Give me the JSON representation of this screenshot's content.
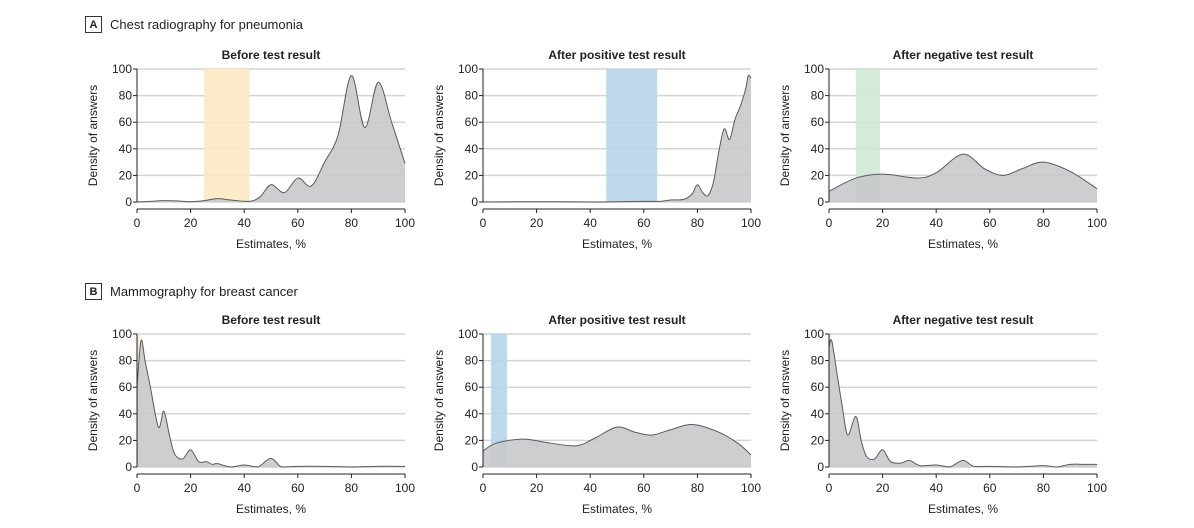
{
  "sections": [
    {
      "label": "A",
      "title": "Chest radiography for pneumonia"
    },
    {
      "label": "B",
      "title": "Mammography for breast cancer"
    }
  ],
  "chart_data": [
    {
      "type": "area",
      "section": "A",
      "title": "Before test result",
      "xlabel": "Estimates, %",
      "ylabel": "Density of answers",
      "xlim": [
        0,
        100
      ],
      "ylim": [
        0,
        100
      ],
      "xticks": [
        0,
        20,
        40,
        60,
        80,
        100
      ],
      "yticks": [
        0,
        20,
        40,
        60,
        80,
        100
      ],
      "grid": true,
      "band": {
        "from": 25,
        "to": 42,
        "color": "#fce8c2"
      },
      "points": [
        [
          0,
          0
        ],
        [
          5,
          0.5
        ],
        [
          10,
          1
        ],
        [
          15,
          0.8
        ],
        [
          20,
          0.2
        ],
        [
          25,
          1
        ],
        [
          30,
          2.5
        ],
        [
          35,
          1.5
        ],
        [
          42,
          0.5
        ],
        [
          46,
          4
        ],
        [
          50,
          13
        ],
        [
          55,
          7
        ],
        [
          60,
          18
        ],
        [
          65,
          12
        ],
        [
          70,
          30
        ],
        [
          75,
          50
        ],
        [
          80,
          95
        ],
        [
          85,
          56
        ],
        [
          90,
          90
        ],
        [
          95,
          60
        ],
        [
          100,
          29
        ]
      ]
    },
    {
      "type": "area",
      "section": "A",
      "title": "After positive test result",
      "xlabel": "Estimates, %",
      "ylabel": "Density of answers",
      "xlim": [
        0,
        100
      ],
      "ylim": [
        0,
        100
      ],
      "xticks": [
        0,
        20,
        40,
        60,
        80,
        100
      ],
      "yticks": [
        0,
        20,
        40,
        60,
        80,
        100
      ],
      "grid": true,
      "band": {
        "from": 46,
        "to": 65,
        "color": "#b7d4ea"
      },
      "points": [
        [
          0,
          0
        ],
        [
          20,
          0.2
        ],
        [
          40,
          0
        ],
        [
          50,
          0.2
        ],
        [
          60,
          0.5
        ],
        [
          66,
          0.5
        ],
        [
          70,
          1.5
        ],
        [
          75,
          2
        ],
        [
          78,
          6
        ],
        [
          80,
          13
        ],
        [
          82,
          7
        ],
        [
          84,
          5
        ],
        [
          86,
          15
        ],
        [
          88,
          38
        ],
        [
          90,
          55
        ],
        [
          92,
          47
        ],
        [
          94,
          62
        ],
        [
          96,
          72
        ],
        [
          98,
          85
        ],
        [
          99,
          95
        ],
        [
          100,
          93
        ]
      ]
    },
    {
      "type": "area",
      "section": "A",
      "title": "After negative test result",
      "xlabel": "Estimates, %",
      "ylabel": "Density of answers",
      "xlim": [
        0,
        100
      ],
      "ylim": [
        0,
        100
      ],
      "xticks": [
        0,
        20,
        40,
        60,
        80,
        100
      ],
      "yticks": [
        0,
        20,
        40,
        60,
        80,
        100
      ],
      "grid": true,
      "band": {
        "from": 10,
        "to": 19,
        "color": "#cfe9d6"
      },
      "points": [
        [
          0,
          8
        ],
        [
          10,
          18
        ],
        [
          20,
          21
        ],
        [
          33,
          18
        ],
        [
          40,
          22
        ],
        [
          50,
          36
        ],
        [
          58,
          25
        ],
        [
          65,
          20
        ],
        [
          72,
          25
        ],
        [
          80,
          30
        ],
        [
          90,
          23
        ],
        [
          100,
          10
        ]
      ]
    },
    {
      "type": "area",
      "section": "B",
      "title": "Before test result",
      "xlabel": "Estimates, %",
      "ylabel": "Density of answers",
      "xlim": [
        0,
        100
      ],
      "ylim": [
        0,
        100
      ],
      "xticks": [
        0,
        20,
        40,
        60,
        80,
        100
      ],
      "yticks": [
        0,
        20,
        40,
        60,
        80,
        100
      ],
      "grid": true,
      "band": {
        "from": 0,
        "to": 1,
        "color": "#fce8c2"
      },
      "points": [
        [
          0,
          60
        ],
        [
          1.5,
          95
        ],
        [
          3,
          80
        ],
        [
          5,
          60
        ],
        [
          8,
          30
        ],
        [
          10,
          42
        ],
        [
          12,
          25
        ],
        [
          14,
          10
        ],
        [
          17,
          6
        ],
        [
          20,
          13
        ],
        [
          23,
          4
        ],
        [
          26,
          4
        ],
        [
          28,
          2
        ],
        [
          30,
          2.5
        ],
        [
          35,
          0
        ],
        [
          40,
          1.5
        ],
        [
          45,
          0
        ],
        [
          50,
          6.5
        ],
        [
          54,
          0
        ],
        [
          60,
          0.5
        ],
        [
          70,
          0.5
        ],
        [
          80,
          0
        ],
        [
          90,
          0.5
        ],
        [
          100,
          0.5
        ]
      ]
    },
    {
      "type": "area",
      "section": "B",
      "title": "After positive test result",
      "xlabel": "Estimates, %",
      "ylabel": "Density of answers",
      "xlim": [
        0,
        100
      ],
      "ylim": [
        0,
        100
      ],
      "xticks": [
        0,
        20,
        40,
        60,
        80,
        100
      ],
      "yticks": [
        0,
        20,
        40,
        60,
        80,
        100
      ],
      "grid": true,
      "band": {
        "from": 3,
        "to": 9,
        "color": "#b7d4ea"
      },
      "points": [
        [
          0,
          12
        ],
        [
          5,
          18
        ],
        [
          15,
          21
        ],
        [
          25,
          18
        ],
        [
          35,
          16
        ],
        [
          42,
          22
        ],
        [
          50,
          30
        ],
        [
          57,
          26
        ],
        [
          63,
          24
        ],
        [
          70,
          28
        ],
        [
          78,
          32
        ],
        [
          87,
          27
        ],
        [
          95,
          18
        ],
        [
          100,
          9
        ]
      ]
    },
    {
      "type": "area",
      "section": "B",
      "title": "After negative test result",
      "xlabel": "Estimates, %",
      "ylabel": "Density of answers",
      "xlim": [
        0,
        100
      ],
      "ylim": [
        0,
        100
      ],
      "xticks": [
        0,
        20,
        40,
        60,
        80,
        100
      ],
      "yticks": [
        0,
        20,
        40,
        60,
        80,
        100
      ],
      "grid": true,
      "band": {
        "from": 0,
        "to": 0.5,
        "color": "#cfe9d6"
      },
      "points": [
        [
          0,
          90
        ],
        [
          1,
          95
        ],
        [
          3,
          70
        ],
        [
          5,
          45
        ],
        [
          7,
          24
        ],
        [
          10,
          38
        ],
        [
          12,
          20
        ],
        [
          14,
          8
        ],
        [
          17,
          6
        ],
        [
          20,
          13
        ],
        [
          23,
          4
        ],
        [
          27,
          3
        ],
        [
          30,
          5
        ],
        [
          34,
          1
        ],
        [
          40,
          1.5
        ],
        [
          45,
          0
        ],
        [
          50,
          5
        ],
        [
          54,
          0.5
        ],
        [
          60,
          0.5
        ],
        [
          70,
          0
        ],
        [
          80,
          1
        ],
        [
          85,
          0
        ],
        [
          90,
          2
        ],
        [
          95,
          2
        ],
        [
          100,
          2
        ]
      ]
    }
  ],
  "colors": {
    "fill": "#c8c9cb",
    "stroke": "#5a5a5a",
    "grid": "#d4d4d4"
  }
}
